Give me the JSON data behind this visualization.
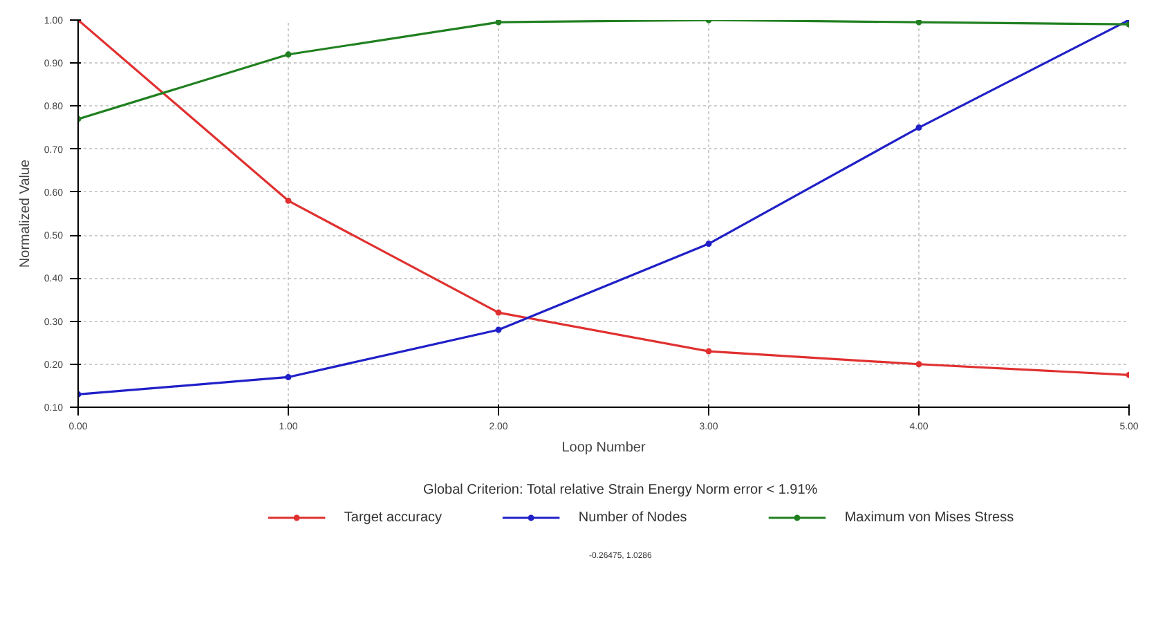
{
  "chart_data": {
    "type": "line",
    "xlabel": "Loop Number",
    "ylabel": "Normalized Value",
    "legend_title": "Global Criterion: Total relative Strain Energy Norm error < 1.91%",
    "annotations": [
      "-0.26475, 1.0286"
    ],
    "x": [
      0,
      1,
      2,
      3,
      4,
      5
    ],
    "series": [
      {
        "name": "Target accuracy",
        "color": "#e03030",
        "values": [
          1.0,
          0.58,
          0.32,
          0.23,
          0.2,
          0.175
        ]
      },
      {
        "name": "Number of Nodes",
        "color": "#2020c8",
        "values": [
          0.13,
          0.17,
          0.28,
          0.48,
          0.75,
          1.0
        ]
      },
      {
        "name": "Maximum von Mises Stress",
        "color": "#208020",
        "values": [
          0.77,
          0.92,
          0.995,
          1.0,
          0.995,
          0.99
        ]
      }
    ],
    "xlim": [
      0,
      5
    ],
    "ylim": [
      0.1,
      1.0
    ],
    "xticks": [
      {
        "value": 0,
        "label": "0.00"
      },
      {
        "value": 1,
        "label": "1.00"
      },
      {
        "value": 2,
        "label": "2.00"
      },
      {
        "value": 3,
        "label": "3.00"
      },
      {
        "value": 4,
        "label": "4.00"
      },
      {
        "value": 5,
        "label": "5.00"
      }
    ],
    "yticks": [
      {
        "value": 0.1,
        "label": "0.10"
      },
      {
        "value": 0.2,
        "label": "0.20"
      },
      {
        "value": 0.3,
        "label": "0.30"
      },
      {
        "value": 0.4,
        "label": "0.40"
      },
      {
        "value": 0.5,
        "label": "0.50"
      },
      {
        "value": 0.6,
        "label": "0.60"
      },
      {
        "value": 0.7,
        "label": "0.70"
      },
      {
        "value": 0.8,
        "label": "0.80"
      },
      {
        "value": 0.9,
        "label": "0.90"
      },
      {
        "value": 1.0,
        "label": "1.00"
      }
    ],
    "grid": true,
    "legend": "bottom",
    "marker": "circle",
    "line_style": "solid"
  }
}
